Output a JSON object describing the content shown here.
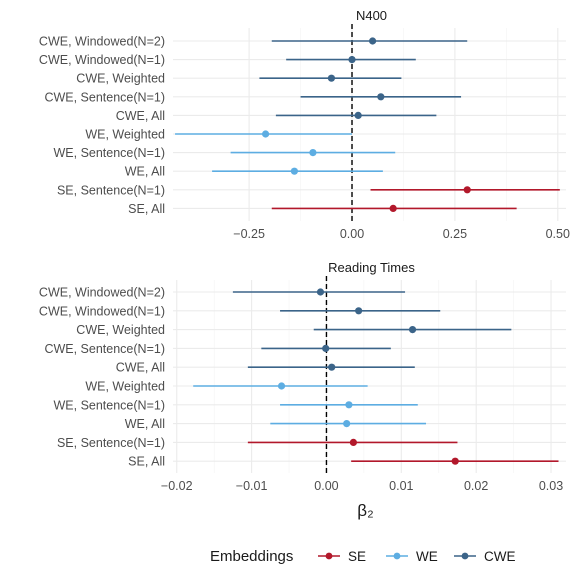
{
  "colors": {
    "SE": "#b2182b",
    "WE": "#5dade2",
    "CWE": "#3b6489",
    "grid": "#ebebeb",
    "zero_line": "#000000",
    "tick_text": "#4d4d4d"
  },
  "chart_data": [
    {
      "type": "forest",
      "title": "N400",
      "categories": [
        "CWE, Windowed(N=2)",
        "CWE, Windowed(N=1)",
        "CWE, Weighted",
        "CWE, Sentence(N=1)",
        "CWE, All",
        "WE, Weighted",
        "WE, Sentence(N=1)",
        "WE, All",
        "SE, Sentence(N=1)",
        "SE, All"
      ],
      "groups": [
        "CWE",
        "CWE",
        "CWE",
        "CWE",
        "CWE",
        "WE",
        "WE",
        "WE",
        "SE",
        "SE"
      ],
      "estimates": [
        0.05,
        0.0,
        -0.05,
        0.07,
        0.015,
        -0.21,
        -0.095,
        -0.14,
        0.28,
        0.1
      ],
      "lower": [
        -0.195,
        -0.16,
        -0.225,
        -0.125,
        -0.185,
        -0.43,
        -0.295,
        -0.34,
        0.045,
        -0.195
      ],
      "upper": [
        0.28,
        0.155,
        0.12,
        0.265,
        0.205,
        0.0,
        0.105,
        0.075,
        0.505,
        0.4
      ],
      "xticks": [
        -0.25,
        0.0,
        0.25,
        0.5
      ],
      "xtick_labels": [
        "−0.25",
        "0.00",
        "0.25",
        "0.50"
      ],
      "xlim": [
        -0.435,
        0.52
      ],
      "reference_line": 0
    },
    {
      "type": "forest",
      "title": "Reading Times",
      "categories": [
        "CWE, Windowed(N=2)",
        "CWE, Windowed(N=1)",
        "CWE, Weighted",
        "CWE, Sentence(N=1)",
        "CWE, All",
        "WE, Weighted",
        "WE, Sentence(N=1)",
        "WE, All",
        "SE, Sentence(N=1)",
        "SE, All"
      ],
      "groups": [
        "CWE",
        "CWE",
        "CWE",
        "CWE",
        "CWE",
        "WE",
        "WE",
        "WE",
        "SE",
        "SE"
      ],
      "estimates": [
        -0.0008,
        0.0043,
        0.0115,
        -0.0001,
        0.0007,
        -0.006,
        0.003,
        0.0027,
        0.0036,
        0.0172
      ],
      "lower": [
        -0.0125,
        -0.0062,
        -0.0017,
        -0.0087,
        -0.0105,
        -0.0178,
        -0.0062,
        -0.0075,
        -0.0105,
        0.0033
      ],
      "upper": [
        0.0105,
        0.0152,
        0.0247,
        0.0086,
        0.0118,
        0.0055,
        0.0122,
        0.0133,
        0.0175,
        0.031
      ],
      "xticks": [
        -0.02,
        -0.01,
        0.0,
        0.01,
        0.02,
        0.03
      ],
      "xtick_labels": [
        "−0.02",
        "−0.01",
        "0.00",
        "0.01",
        "0.02",
        "0.03"
      ],
      "xlim": [
        -0.0205,
        0.032
      ],
      "reference_line": 0,
      "xlabel": "β₂"
    }
  ],
  "legend": {
    "title": "Embeddings",
    "items": [
      {
        "key": "SE",
        "label": "SE"
      },
      {
        "key": "WE",
        "label": "WE"
      },
      {
        "key": "CWE",
        "label": "CWE"
      }
    ]
  }
}
